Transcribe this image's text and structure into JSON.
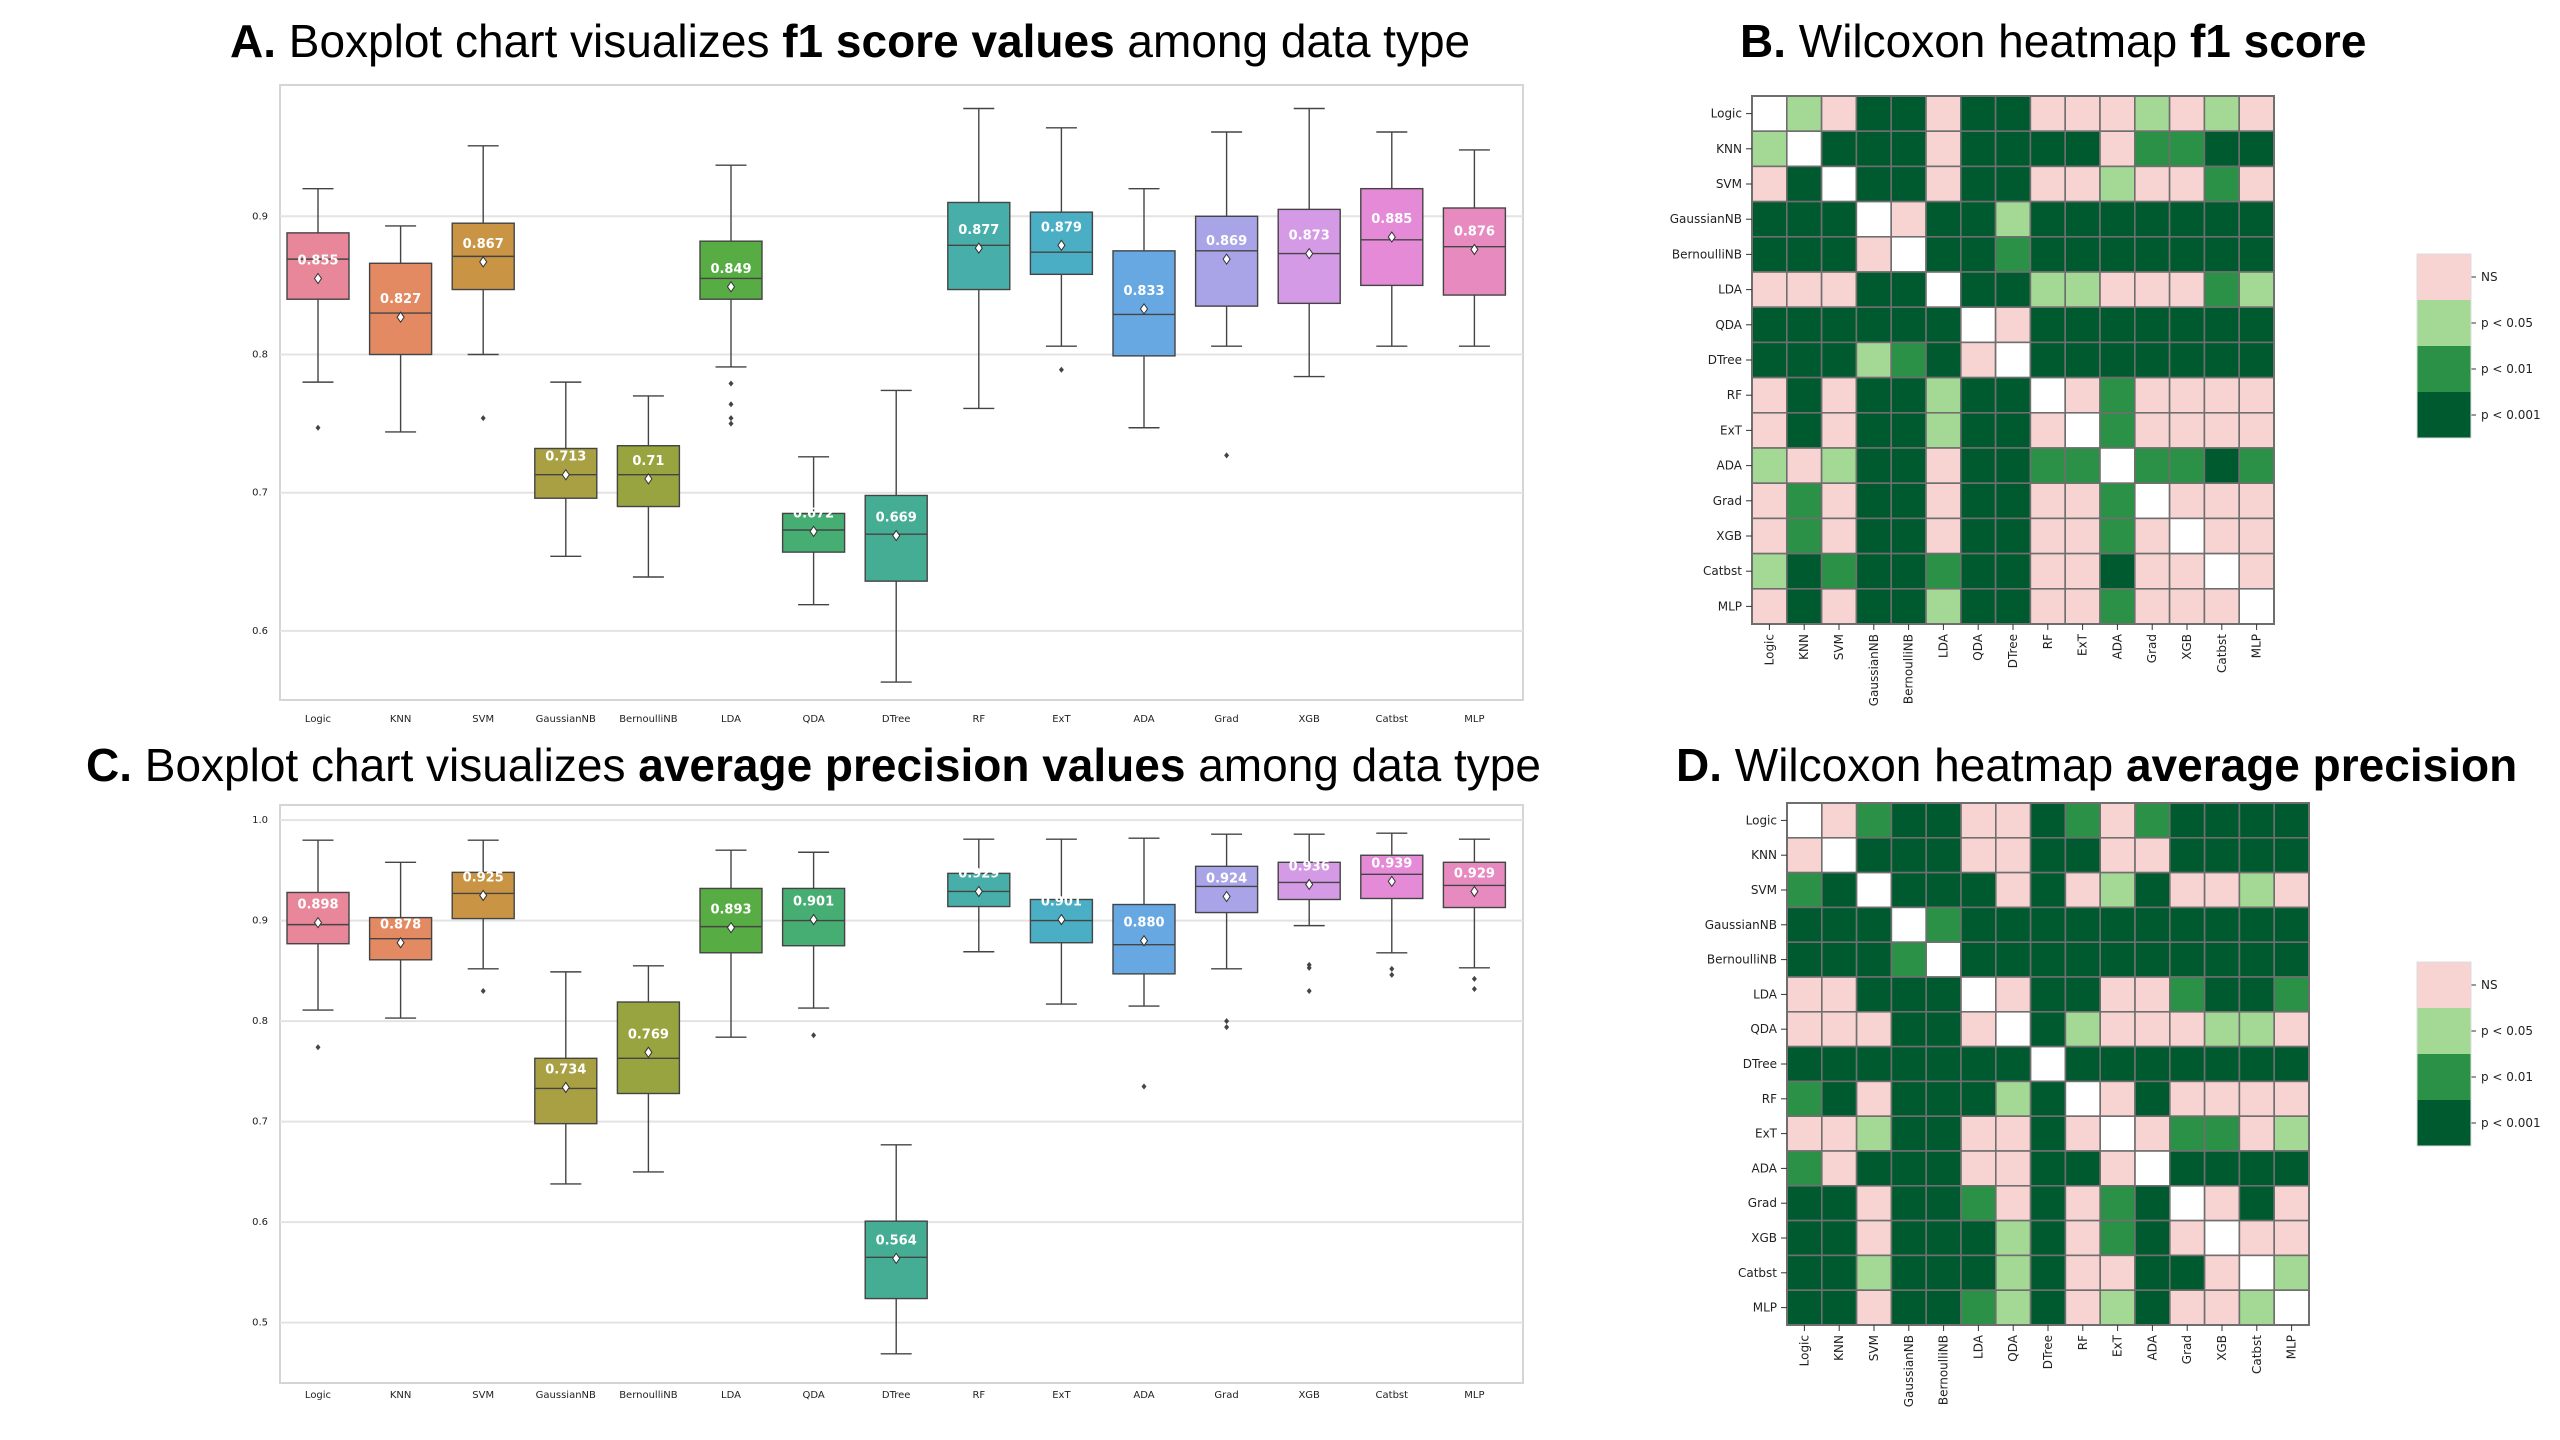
{
  "titles": {
    "A": {
      "letter": "A.",
      "pre": " Boxplot chart visualizes ",
      "bold": "f1 score values",
      "post": " among data type"
    },
    "B": {
      "letter": "B.",
      "pre": " Wilcoxon heatmap ",
      "bold": "f1 score",
      "post": ""
    },
    "C": {
      "letter": "C.",
      "pre": " Boxplot chart visualizes ",
      "bold": "average precision values",
      "post": " among data type"
    },
    "D": {
      "letter": "D.",
      "pre": " Wilcoxon heatmap ",
      "bold": "average precision",
      "post": ""
    }
  },
  "models": [
    "Logic",
    "KNN",
    "SVM",
    "GaussianNB",
    "BernoulliNB",
    "LDA",
    "QDA",
    "DTree",
    "RF",
    "ExT",
    "ADA",
    "Grad",
    "XGB",
    "Catbst",
    "MLP"
  ],
  "box_colors": [
    "#e8879a",
    "#e38a63",
    "#c99544",
    "#a8a043",
    "#98a43f",
    "#58ac44",
    "#46ad73",
    "#45ad94",
    "#47aeaa",
    "#4aaec4",
    "#67a8e2",
    "#a9a4e7",
    "#d49ae5",
    "#e48ad6",
    "#e68ac0"
  ],
  "heat_colors": {
    "NS": "#f7d4d2",
    "p05": "#a3d994",
    "p01": "#2a9146",
    "p001": "#005a2f",
    "diag": "#ffffff"
  },
  "legend": [
    "NS",
    "p < 0.05",
    "p < 0.01",
    "p < 0.001"
  ],
  "chart_data": [
    {
      "type": "box",
      "panel": "A",
      "ylim": [
        0.55,
        0.995
      ],
      "yticks": [
        "0.6",
        "0.7",
        "0.8",
        "0.9"
      ],
      "series": [
        {
          "q1": 0.84,
          "median": 0.869,
          "q3": 0.888,
          "wlow": 0.78,
          "whigh": 0.92,
          "mean": 0.855,
          "label": "0.855",
          "outliers": [
            0.747
          ]
        },
        {
          "q1": 0.8,
          "median": 0.83,
          "q3": 0.866,
          "wlow": 0.744,
          "whigh": 0.893,
          "mean": 0.827,
          "label": "0.827",
          "outliers": []
        },
        {
          "q1": 0.847,
          "median": 0.871,
          "q3": 0.895,
          "wlow": 0.8,
          "whigh": 0.951,
          "mean": 0.867,
          "label": "0.867",
          "outliers": [
            0.754
          ]
        },
        {
          "q1": 0.696,
          "median": 0.713,
          "q3": 0.732,
          "wlow": 0.654,
          "whigh": 0.78,
          "mean": 0.713,
          "label": "0.713",
          "outliers": []
        },
        {
          "q1": 0.69,
          "median": 0.713,
          "q3": 0.734,
          "wlow": 0.639,
          "whigh": 0.77,
          "mean": 0.71,
          "label": "0.71",
          "outliers": []
        },
        {
          "q1": 0.84,
          "median": 0.855,
          "q3": 0.882,
          "wlow": 0.791,
          "whigh": 0.937,
          "mean": 0.849,
          "label": "0.849",
          "outliers": [
            0.779,
            0.764,
            0.754,
            0.75
          ]
        },
        {
          "q1": 0.657,
          "median": 0.673,
          "q3": 0.685,
          "wlow": 0.619,
          "whigh": 0.726,
          "mean": 0.672,
          "label": "0.672",
          "outliers": []
        },
        {
          "q1": 0.636,
          "median": 0.67,
          "q3": 0.698,
          "wlow": 0.563,
          "whigh": 0.774,
          "mean": 0.669,
          "label": "0.669",
          "outliers": []
        },
        {
          "q1": 0.847,
          "median": 0.879,
          "q3": 0.91,
          "wlow": 0.761,
          "whigh": 0.978,
          "mean": 0.877,
          "label": "0.877",
          "outliers": []
        },
        {
          "q1": 0.858,
          "median": 0.874,
          "q3": 0.903,
          "wlow": 0.806,
          "whigh": 0.964,
          "mean": 0.879,
          "label": "0.879",
          "outliers": [
            0.789
          ]
        },
        {
          "q1": 0.799,
          "median": 0.829,
          "q3": 0.875,
          "wlow": 0.747,
          "whigh": 0.92,
          "mean": 0.833,
          "label": "0.833",
          "outliers": []
        },
        {
          "q1": 0.835,
          "median": 0.875,
          "q3": 0.9,
          "wlow": 0.806,
          "whigh": 0.961,
          "mean": 0.869,
          "label": "0.869",
          "outliers": [
            0.727
          ]
        },
        {
          "q1": 0.837,
          "median": 0.873,
          "q3": 0.905,
          "wlow": 0.784,
          "whigh": 0.978,
          "mean": 0.873,
          "label": "0.873",
          "outliers": []
        },
        {
          "q1": 0.85,
          "median": 0.883,
          "q3": 0.92,
          "wlow": 0.806,
          "whigh": 0.961,
          "mean": 0.885,
          "label": "0.885",
          "outliers": []
        },
        {
          "q1": 0.843,
          "median": 0.878,
          "q3": 0.906,
          "wlow": 0.806,
          "whigh": 0.948,
          "mean": 0.876,
          "label": "0.876",
          "outliers": []
        }
      ]
    },
    {
      "type": "box",
      "panel": "C",
      "ylim": [
        0.44,
        1.015
      ],
      "yticks": [
        "0.5",
        "0.6",
        "0.7",
        "0.8",
        "0.9",
        "1.0"
      ],
      "series": [
        {
          "q1": 0.877,
          "median": 0.896,
          "q3": 0.928,
          "wlow": 0.811,
          "whigh": 0.98,
          "mean": 0.898,
          "label": "0.898",
          "outliers": [
            0.774
          ]
        },
        {
          "q1": 0.861,
          "median": 0.882,
          "q3": 0.903,
          "wlow": 0.803,
          "whigh": 0.958,
          "mean": 0.878,
          "label": "0.878",
          "outliers": []
        },
        {
          "q1": 0.902,
          "median": 0.927,
          "q3": 0.948,
          "wlow": 0.852,
          "whigh": 0.98,
          "mean": 0.925,
          "label": "0.925",
          "outliers": [
            0.83
          ]
        },
        {
          "q1": 0.698,
          "median": 0.733,
          "q3": 0.763,
          "wlow": 0.638,
          "whigh": 0.849,
          "mean": 0.734,
          "label": "0.734",
          "outliers": []
        },
        {
          "q1": 0.728,
          "median": 0.763,
          "q3": 0.819,
          "wlow": 0.65,
          "whigh": 0.855,
          "mean": 0.769,
          "label": "0.769",
          "outliers": []
        },
        {
          "q1": 0.868,
          "median": 0.894,
          "q3": 0.932,
          "wlow": 0.784,
          "whigh": 0.97,
          "mean": 0.893,
          "label": "0.893",
          "outliers": []
        },
        {
          "q1": 0.875,
          "median": 0.9,
          "q3": 0.932,
          "wlow": 0.813,
          "whigh": 0.968,
          "mean": 0.901,
          "label": "0.901",
          "outliers": [
            0.786
          ]
        },
        {
          "q1": 0.524,
          "median": 0.565,
          "q3": 0.601,
          "wlow": 0.469,
          "whigh": 0.677,
          "mean": 0.564,
          "label": "0.564",
          "outliers": []
        },
        {
          "q1": 0.914,
          "median": 0.929,
          "q3": 0.947,
          "wlow": 0.869,
          "whigh": 0.981,
          "mean": 0.929,
          "label": "0.929",
          "outliers": []
        },
        {
          "q1": 0.878,
          "median": 0.9,
          "q3": 0.921,
          "wlow": 0.817,
          "whigh": 0.981,
          "mean": 0.901,
          "label": "0.901",
          "outliers": []
        },
        {
          "q1": 0.847,
          "median": 0.876,
          "q3": 0.916,
          "wlow": 0.815,
          "whigh": 0.982,
          "mean": 0.88,
          "label": "0.880",
          "outliers": [
            0.735
          ]
        },
        {
          "q1": 0.908,
          "median": 0.934,
          "q3": 0.954,
          "wlow": 0.852,
          "whigh": 0.986,
          "mean": 0.924,
          "label": "0.924",
          "outliers": [
            0.8,
            0.794
          ]
        },
        {
          "q1": 0.921,
          "median": 0.938,
          "q3": 0.958,
          "wlow": 0.895,
          "whigh": 0.986,
          "mean": 0.936,
          "label": "0.936",
          "outliers": [
            0.856,
            0.853,
            0.83
          ]
        },
        {
          "q1": 0.922,
          "median": 0.946,
          "q3": 0.965,
          "wlow": 0.868,
          "whigh": 0.987,
          "mean": 0.939,
          "label": "0.939",
          "outliers": [
            0.852,
            0.846
          ]
        },
        {
          "q1": 0.913,
          "median": 0.935,
          "q3": 0.958,
          "wlow": 0.853,
          "whigh": 0.981,
          "mean": 0.929,
          "label": "0.929",
          "outliers": [
            0.842,
            0.832
          ]
        }
      ]
    },
    {
      "type": "heatmap",
      "panel": "B",
      "legend": [
        "NS",
        "p < 0.05",
        "p < 0.01",
        "p < 0.001"
      ],
      "matrix": [
        [
          -1,
          1,
          0,
          3,
          3,
          0,
          3,
          3,
          0,
          0,
          0,
          1,
          0,
          1,
          0
        ],
        [
          1,
          -1,
          3,
          3,
          3,
          0,
          3,
          3,
          3,
          3,
          0,
          2,
          2,
          3,
          3
        ],
        [
          0,
          3,
          -1,
          3,
          3,
          0,
          3,
          3,
          0,
          0,
          1,
          0,
          0,
          2,
          0
        ],
        [
          3,
          3,
          3,
          -1,
          0,
          3,
          3,
          1,
          3,
          3,
          3,
          3,
          3,
          3,
          3
        ],
        [
          3,
          3,
          3,
          0,
          -1,
          3,
          3,
          2,
          3,
          3,
          3,
          3,
          3,
          3,
          3
        ],
        [
          0,
          0,
          0,
          3,
          3,
          -1,
          3,
          3,
          1,
          1,
          0,
          0,
          0,
          2,
          1
        ],
        [
          3,
          3,
          3,
          3,
          3,
          3,
          -1,
          0,
          3,
          3,
          3,
          3,
          3,
          3,
          3
        ],
        [
          3,
          3,
          3,
          1,
          2,
          3,
          0,
          -1,
          3,
          3,
          3,
          3,
          3,
          3,
          3
        ],
        [
          0,
          3,
          0,
          3,
          3,
          1,
          3,
          3,
          -1,
          0,
          2,
          0,
          0,
          0,
          0
        ],
        [
          0,
          3,
          0,
          3,
          3,
          1,
          3,
          3,
          0,
          -1,
          2,
          0,
          0,
          0,
          0
        ],
        [
          1,
          0,
          1,
          3,
          3,
          0,
          3,
          3,
          2,
          2,
          -1,
          2,
          2,
          3,
          2
        ],
        [
          0,
          2,
          0,
          3,
          3,
          0,
          3,
          3,
          0,
          0,
          2,
          -1,
          0,
          0,
          0
        ],
        [
          0,
          2,
          0,
          3,
          3,
          0,
          3,
          3,
          0,
          0,
          2,
          0,
          -1,
          0,
          0
        ],
        [
          1,
          3,
          2,
          3,
          3,
          2,
          3,
          3,
          0,
          0,
          3,
          0,
          0,
          -1,
          0
        ],
        [
          0,
          3,
          0,
          3,
          3,
          1,
          3,
          3,
          0,
          0,
          2,
          0,
          0,
          0,
          -1
        ]
      ]
    },
    {
      "type": "heatmap",
      "panel": "D",
      "legend": [
        "NS",
        "p < 0.05",
        "p < 0.01",
        "p < 0.001"
      ],
      "matrix": [
        [
          -1,
          0,
          2,
          3,
          3,
          0,
          0,
          3,
          2,
          0,
          2,
          3,
          3,
          3,
          3
        ],
        [
          0,
          -1,
          3,
          3,
          3,
          0,
          0,
          3,
          3,
          0,
          0,
          3,
          3,
          3,
          3
        ],
        [
          2,
          3,
          -1,
          3,
          3,
          3,
          0,
          3,
          0,
          1,
          3,
          0,
          0,
          1,
          0
        ],
        [
          3,
          3,
          3,
          -1,
          2,
          3,
          3,
          3,
          3,
          3,
          3,
          3,
          3,
          3,
          3
        ],
        [
          3,
          3,
          3,
          2,
          -1,
          3,
          3,
          3,
          3,
          3,
          3,
          3,
          3,
          3,
          3
        ],
        [
          0,
          0,
          3,
          3,
          3,
          -1,
          0,
          3,
          3,
          0,
          0,
          2,
          3,
          3,
          2
        ],
        [
          0,
          0,
          0,
          3,
          3,
          0,
          -1,
          3,
          1,
          0,
          0,
          0,
          1,
          1,
          0
        ],
        [
          3,
          3,
          3,
          3,
          3,
          3,
          3,
          -1,
          3,
          3,
          3,
          3,
          3,
          3,
          3
        ],
        [
          2,
          3,
          0,
          3,
          3,
          3,
          1,
          3,
          -1,
          0,
          3,
          0,
          0,
          0,
          0
        ],
        [
          0,
          0,
          1,
          3,
          3,
          0,
          0,
          3,
          0,
          -1,
          0,
          2,
          2,
          0,
          1
        ],
        [
          2,
          0,
          3,
          3,
          3,
          0,
          0,
          3,
          3,
          0,
          -1,
          3,
          3,
          3,
          3
        ],
        [
          3,
          3,
          0,
          3,
          3,
          2,
          0,
          3,
          0,
          2,
          3,
          -1,
          0,
          3,
          0
        ],
        [
          3,
          3,
          0,
          3,
          3,
          3,
          1,
          3,
          0,
          2,
          3,
          0,
          -1,
          0,
          0
        ],
        [
          3,
          3,
          1,
          3,
          3,
          3,
          1,
          3,
          0,
          0,
          3,
          3,
          0,
          -1,
          1
        ],
        [
          3,
          3,
          0,
          3,
          3,
          2,
          1,
          3,
          0,
          1,
          3,
          0,
          0,
          1,
          -1
        ]
      ]
    }
  ]
}
